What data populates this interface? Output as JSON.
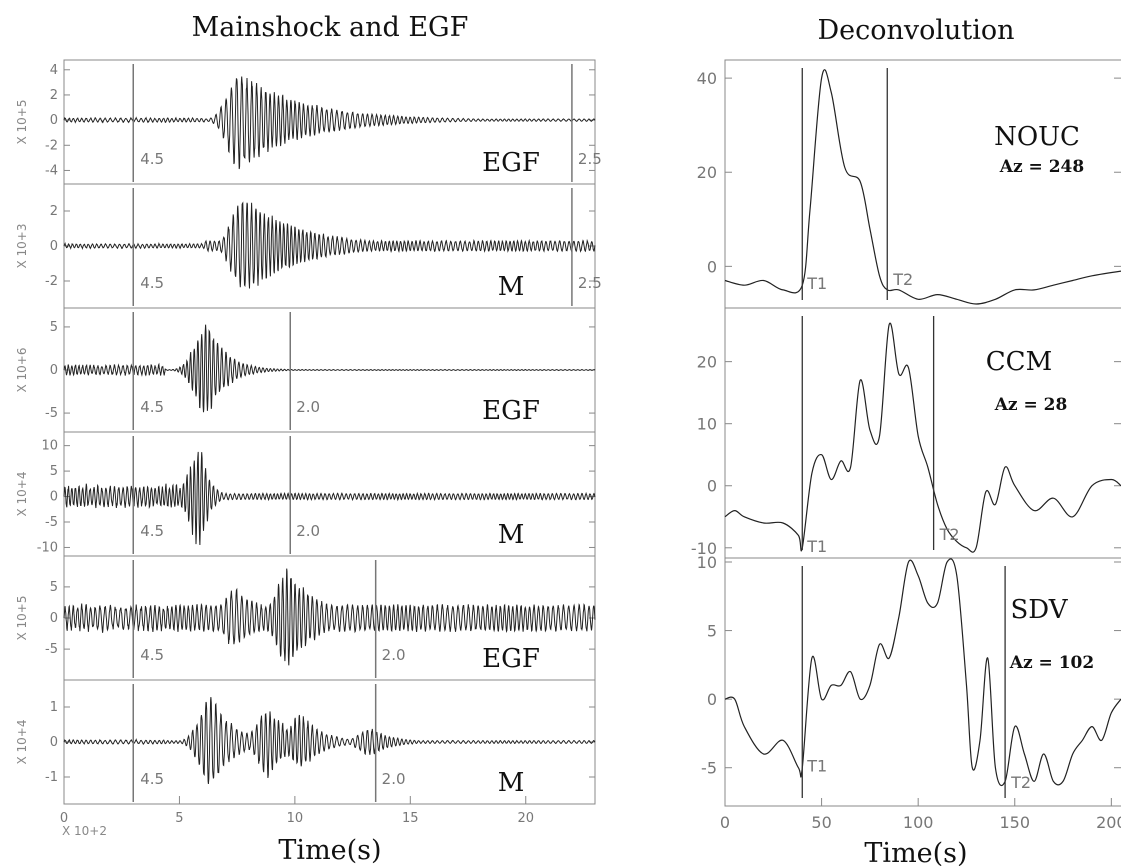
{
  "chart_data": [
    {
      "type": "line",
      "title": "Mainshock and EGF",
      "xlabel": "Time(s)",
      "x_multiplier_label": "X 10+2",
      "xlim": [
        0,
        23
      ],
      "xticks": [
        0,
        5,
        10,
        15,
        20
      ],
      "panels": [
        {
          "label": "EGF",
          "scale_label": "X 10+5",
          "ylim": [
            -4.6,
            4.3
          ],
          "yticks": [
            -4,
            -2,
            0,
            2,
            4
          ],
          "window_start": 3.0,
          "window_end": 22.0,
          "start_label": "4.5",
          "end_label": "2.5",
          "signal_start": 6.1,
          "signal_end": 22.0,
          "peak": 4.0,
          "burst_times": [
            7.6,
            11.5
          ],
          "burst_amps": [
            1.0,
            0.22
          ],
          "decay": 2.8,
          "pre_noise": 0.05,
          "tail_noise": 0.08,
          "freq": 5.0
        },
        {
          "label": "M",
          "scale_label": "X 10+3",
          "ylim": [
            -3.2,
            3.2
          ],
          "yticks": [
            -2,
            0,
            2
          ],
          "window_start": 3.0,
          "window_end": 22.0,
          "start_label": "4.5",
          "end_label": "2.5",
          "signal_start": 6.1,
          "signal_end": 23.0,
          "peak": 3.0,
          "burst_times": [
            7.8
          ],
          "burst_amps": [
            1.0
          ],
          "decay": 2.4,
          "pre_noise": 0.05,
          "tail_noise": 0.35,
          "freq": 5.5
        },
        {
          "label": "EGF",
          "scale_label": "X 10+6",
          "ylim": [
            -6.5,
            6.5
          ],
          "yticks": [
            -5,
            0,
            5
          ],
          "window_start": 3.0,
          "window_end": 9.8,
          "start_label": "4.5",
          "end_label": "2.0",
          "signal_start": 4.4,
          "signal_end": 9.0,
          "peak": 6.0,
          "burst_times": [
            6.2
          ],
          "burst_amps": [
            1.0
          ],
          "decay": 0.8,
          "pre_noise": 0.12,
          "tail_noise": 0.03,
          "freq": 6.0
        },
        {
          "label": "M",
          "scale_label": "X 10+4",
          "ylim": [
            -10.5,
            11.5
          ],
          "yticks": [
            -10,
            -5,
            0,
            5,
            10
          ],
          "window_start": 3.0,
          "window_end": 9.8,
          "start_label": "4.5",
          "end_label": "2.0",
          "signal_start": 5.0,
          "signal_end": 9.0,
          "peak": 10.5,
          "burst_times": [
            5.95
          ],
          "burst_amps": [
            1.0
          ],
          "decay": 0.35,
          "pre_noise": 0.25,
          "tail_noise": 0.2,
          "freq": 6.0
        },
        {
          "label": "EGF",
          "scale_label": "X 10+5",
          "ylim": [
            -9.0,
            9.0
          ],
          "yticks": [
            -5,
            0,
            5
          ],
          "window_start": 3.0,
          "window_end": 13.5,
          "start_label": "4.5",
          "end_label": "2.0",
          "signal_start": 4.6,
          "signal_end": 23.0,
          "peak": 8.3,
          "burst_times": [
            7.4,
            9.7,
            13.5
          ],
          "burst_amps": [
            0.6,
            1.0,
            0.3
          ],
          "decay": 1.4,
          "pre_noise": 0.3,
          "tail_noise": 0.9,
          "freq": 5.0
        },
        {
          "label": "M",
          "scale_label": "X 10+4",
          "ylim": [
            -1.6,
            1.6
          ],
          "yticks": [
            -1,
            0,
            1
          ],
          "window_start": 3.0,
          "window_end": 13.5,
          "start_label": "4.5",
          "end_label": "2.0",
          "signal_start": 4.4,
          "signal_end": 23.0,
          "peak": 1.4,
          "burst_times": [
            6.4,
            8.9,
            10.3,
            13.3
          ],
          "burst_amps": [
            1.0,
            0.75,
            0.6,
            0.3
          ],
          "decay": 0.9,
          "pre_noise": 0.05,
          "tail_noise": 0.1,
          "freq": 5.0
        }
      ]
    },
    {
      "type": "line",
      "title": "Deconvolution",
      "xlabel": "Time(s)",
      "xlim": [
        0,
        205
      ],
      "xticks": [
        0,
        50,
        100,
        150,
        200
      ],
      "panels": [
        {
          "station": "NOUC",
          "azimuth": "Az = 248",
          "ylim": [
            -8,
            43
          ],
          "yticks": [
            0,
            20,
            40
          ],
          "t1": 40,
          "t2": 84,
          "t1_label": "T1",
          "t2_label": "T2",
          "x": [
            0,
            10,
            20,
            30,
            40,
            44,
            50,
            55,
            62,
            70,
            75,
            80,
            84,
            90,
            100,
            110,
            120,
            130,
            140,
            150,
            160,
            170,
            180,
            190,
            205
          ],
          "y": [
            -3,
            -4,
            -3,
            -5,
            -4,
            12,
            40,
            37,
            21,
            18,
            8,
            -2,
            -5,
            -5,
            -7,
            -6,
            -7,
            -8,
            -7,
            -5,
            -5,
            -4,
            -3,
            -2,
            -1
          ]
        },
        {
          "station": "CCM",
          "azimuth": "Az = 28",
          "ylim": [
            -11,
            28
          ],
          "yticks": [
            -10,
            0,
            10,
            20
          ],
          "t1": 40,
          "t2": 108,
          "t1_label": "T1",
          "t2_label": "T2",
          "x": [
            0,
            5,
            10,
            20,
            30,
            38,
            40,
            45,
            50,
            55,
            60,
            65,
            70,
            75,
            80,
            85,
            90,
            95,
            100,
            105,
            110,
            115,
            120,
            125,
            130,
            135,
            140,
            145,
            150,
            160,
            170,
            180,
            190,
            200,
            205
          ],
          "y": [
            -5,
            -4,
            -5,
            -6,
            -6,
            -8,
            -10,
            2,
            5,
            1,
            4,
            3,
            17,
            9,
            8,
            26,
            18,
            19,
            8,
            3,
            -3,
            -7,
            -9,
            -10,
            -10,
            -1,
            -3,
            3,
            0,
            -4,
            -2,
            -5,
            0,
            1,
            0
          ]
        },
        {
          "station": "SDV",
          "azimuth": "Az = 102",
          "ylim": [
            -7.5,
            10
          ],
          "yticks": [
            -5,
            0,
            5,
            10
          ],
          "t1": 40,
          "t2": 145,
          "t1_label": "T1",
          "t2_label": "T2",
          "x": [
            0,
            5,
            10,
            20,
            30,
            38,
            40,
            45,
            50,
            55,
            60,
            65,
            70,
            75,
            80,
            85,
            90,
            95,
            100,
            105,
            110,
            115,
            120,
            125,
            128,
            132,
            136,
            140,
            145,
            150,
            155,
            160,
            165,
            170,
            175,
            180,
            185,
            190,
            195,
            200,
            205
          ],
          "y": [
            0,
            0,
            -2,
            -4,
            -3,
            -5,
            -5,
            3,
            0,
            1,
            1,
            2,
            0,
            1,
            4,
            3,
            6,
            10,
            9,
            7,
            7,
            10,
            9,
            1,
            -5,
            -3,
            3,
            -5,
            -6,
            -2,
            -4,
            -6,
            -4,
            -6,
            -6,
            -4,
            -3,
            -2,
            -3,
            -1,
            0
          ]
        }
      ]
    }
  ]
}
